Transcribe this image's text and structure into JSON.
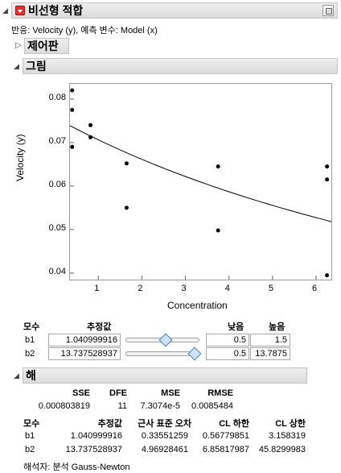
{
  "report": {
    "title": "비선형 적합",
    "response_line": "반응: Velocity (y), 예측 변수: Model (x)"
  },
  "sections": {
    "control_panel": "제어판",
    "plot": "그림",
    "solution": "해"
  },
  "chart_data": {
    "type": "scatter",
    "xlabel": "Concentration",
    "ylabel": "Velocity (y)",
    "xlim": [
      0.35,
      6.35
    ],
    "ylim": [
      0.0385,
      0.0835
    ],
    "xticks": [
      1,
      2,
      3,
      4,
      5,
      6
    ],
    "yticks": [
      0.04,
      0.05,
      0.06,
      0.07,
      0.08
    ],
    "xtick_labels": [
      "1",
      "2",
      "3",
      "4",
      "5",
      "6"
    ],
    "ytick_labels": [
      "0.04",
      "0.05",
      "0.06",
      "0.07",
      "0.08"
    ],
    "points": [
      {
        "x": 0.4,
        "y": 0.082
      },
      {
        "x": 0.4,
        "y": 0.0775
      },
      {
        "x": 0.4,
        "y": 0.069
      },
      {
        "x": 0.82,
        "y": 0.074
      },
      {
        "x": 0.82,
        "y": 0.0712
      },
      {
        "x": 1.65,
        "y": 0.0652
      },
      {
        "x": 1.65,
        "y": 0.055
      },
      {
        "x": 3.75,
        "y": 0.0645
      },
      {
        "x": 3.75,
        "y": 0.0498
      },
      {
        "x": 6.25,
        "y": 0.0645
      },
      {
        "x": 6.25,
        "y": 0.0615
      },
      {
        "x": 6.25,
        "y": 0.0395
      }
    ],
    "fit_model": {
      "b1": 1.040999916,
      "b2": 13.737528937
    },
    "grid": false
  },
  "params": {
    "headers": {
      "param": "모수",
      "estimate": "추정값",
      "low": "낮음",
      "high": "높음"
    },
    "rows": [
      {
        "name": "b1",
        "estimate": "1.040999916",
        "low": "0.5",
        "high": "1.5",
        "slider": 0.55
      },
      {
        "name": "b2",
        "estimate": "13.737528937",
        "low": "0.5",
        "high": "13.7875",
        "slider": 1.0
      }
    ]
  },
  "solution": {
    "summary_headers": {
      "sse": "SSE",
      "dfe": "DFE",
      "mse": "MSE",
      "rmse": "RMSE"
    },
    "summary": {
      "sse": "0.000803819",
      "dfe": "11",
      "mse": "7.3074e-5",
      "rmse": "0.0085484"
    },
    "table_headers": {
      "param": "모수",
      "estimate": "추정값",
      "se": "근사 표준 오차",
      "cl_low": "CL 하한",
      "cl_high": "CL 상한"
    },
    "rows": [
      {
        "name": "b1",
        "estimate": "1.040999916",
        "se": "0.33551259",
        "cl_low": "0.56779851",
        "cl_high": "3.158319"
      },
      {
        "name": "b2",
        "estimate": "13.737528937",
        "se": "4.96928461",
        "cl_low": "6.85817987",
        "cl_high": "45.8299983"
      }
    ],
    "solver": "해석자: 분석 Gauss-Newton"
  }
}
